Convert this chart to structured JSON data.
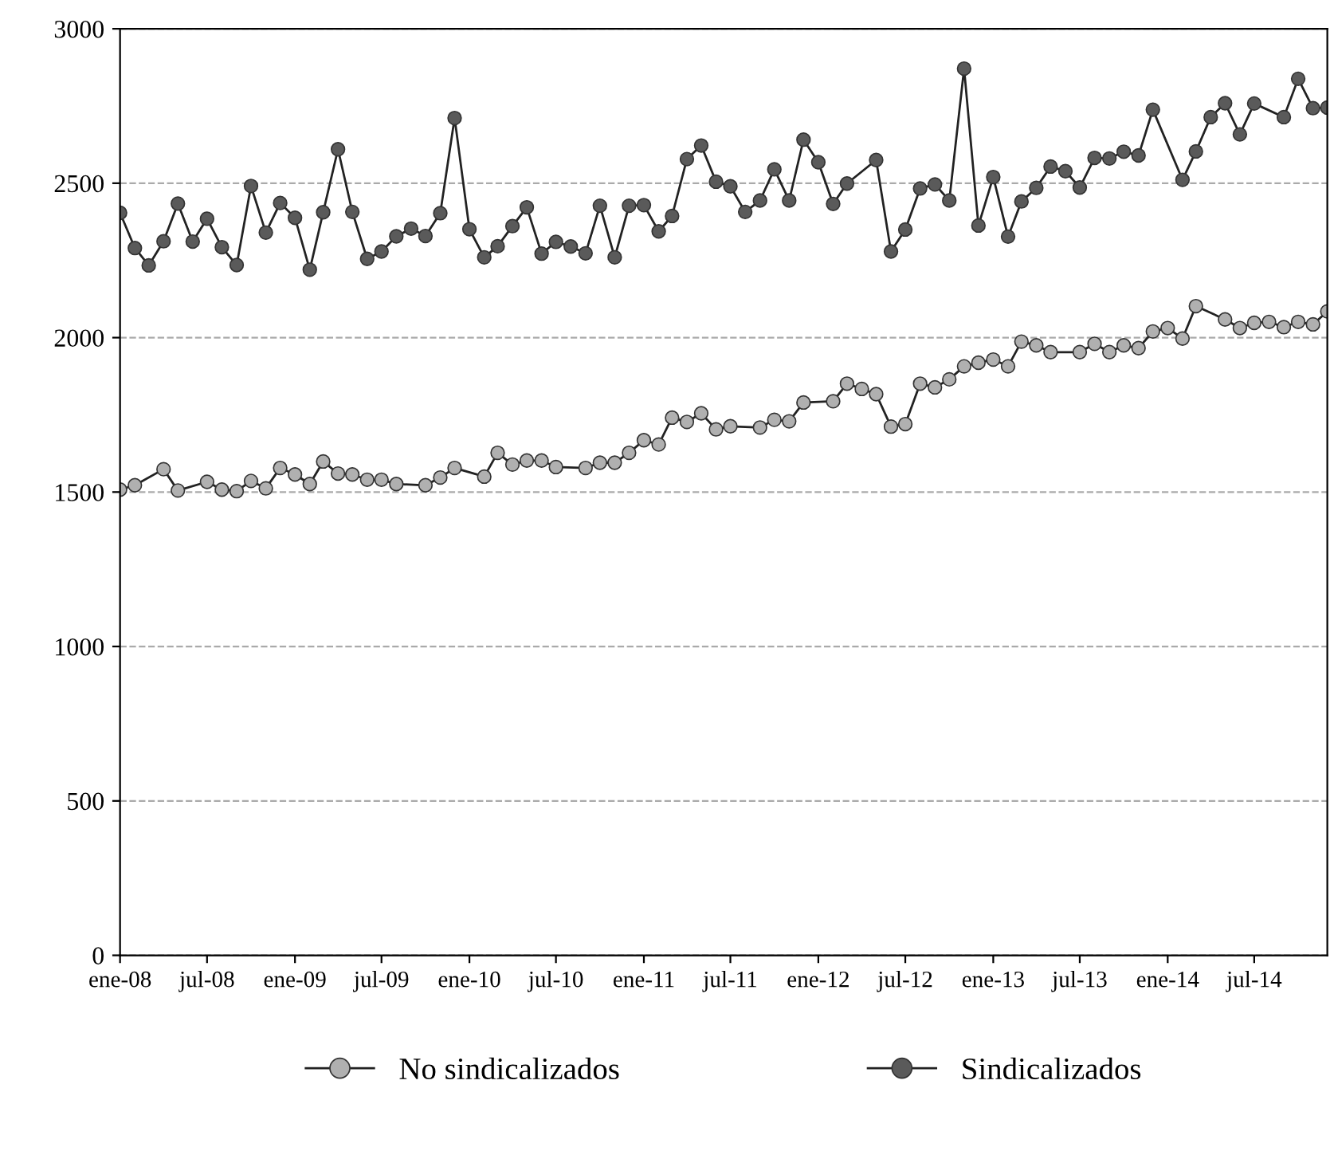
{
  "chart_data": {
    "type": "line",
    "xlim": [
      "2008-01",
      "2014-12"
    ],
    "xticks": [
      {
        "value": "2008-01",
        "label": "ene-08"
      },
      {
        "value": "2008-07",
        "label": "jul-08"
      },
      {
        "value": "2009-01",
        "label": "ene-09"
      },
      {
        "value": "2009-07",
        "label": "jul-09"
      },
      {
        "value": "2010-01",
        "label": "ene-10"
      },
      {
        "value": "2010-07",
        "label": "jul-10"
      },
      {
        "value": "2011-01",
        "label": "ene-11"
      },
      {
        "value": "2011-07",
        "label": "jul-11"
      },
      {
        "value": "2012-01",
        "label": "ene-12"
      },
      {
        "value": "2012-07",
        "label": "jul-12"
      },
      {
        "value": "2013-01",
        "label": "ene-13"
      },
      {
        "value": "2013-07",
        "label": "jul-13"
      },
      {
        "value": "2014-01",
        "label": "ene-14"
      },
      {
        "value": "2014-07",
        "label": "jul-14"
      }
    ],
    "ylim": [
      0,
      3000
    ],
    "yticks": [
      0,
      500,
      1000,
      1500,
      2000,
      2500,
      3000
    ],
    "grid": "y",
    "legend": "bottom",
    "marker": "circle",
    "line_style": "solid",
    "series": [
      {
        "name": "No sindicalizados",
        "color": "#b0b0b0",
        "x": [
          "2008-01",
          "2008-02",
          "2008-04",
          "2008-05",
          "2008-07",
          "2008-08",
          "2008-09",
          "2008-10",
          "2008-11",
          "2008-12",
          "2009-01",
          "2009-02",
          "2009-03",
          "2009-04",
          "2009-05",
          "2009-06",
          "2009-07",
          "2009-08",
          "2009-10",
          "2009-11",
          "2009-12",
          "2010-02",
          "2010-03",
          "2010-04",
          "2010-05",
          "2010-06",
          "2010-07",
          "2010-09",
          "2010-10",
          "2010-11",
          "2010-12",
          "2011-01",
          "2011-02",
          "2011-03",
          "2011-04",
          "2011-05",
          "2011-06",
          "2011-07",
          "2011-09",
          "2011-10",
          "2011-11",
          "2011-12",
          "2012-02",
          "2012-03",
          "2012-04",
          "2012-05",
          "2012-06",
          "2012-07",
          "2012-08",
          "2012-09",
          "2012-10",
          "2012-11",
          "2012-12",
          "2013-01",
          "2013-02",
          "2013-03",
          "2013-04",
          "2013-05",
          "2013-07",
          "2013-08",
          "2013-09",
          "2013-10",
          "2013-11",
          "2013-12",
          "2014-01",
          "2014-02",
          "2014-03",
          "2014-05",
          "2014-06",
          "2014-07",
          "2014-08",
          "2014-09",
          "2014-10",
          "2014-11",
          "2014-12"
        ],
        "values": [
          1508,
          1522,
          1574,
          1505,
          1533,
          1508,
          1503,
          1536,
          1512,
          1578,
          1557,
          1526,
          1599,
          1560,
          1557,
          1540,
          1540,
          1526,
          1522,
          1547,
          1578,
          1550,
          1627,
          1589,
          1602,
          1602,
          1581,
          1578,
          1595,
          1595,
          1627,
          1668,
          1654,
          1741,
          1727,
          1755,
          1703,
          1713,
          1709,
          1734,
          1729,
          1790,
          1794,
          1851,
          1834,
          1817,
          1712,
          1720,
          1851,
          1839,
          1865,
          1907,
          1919,
          1929,
          1907,
          1987,
          1975,
          1953,
          1953,
          1980,
          1953,
          1975,
          1966,
          2020,
          2031,
          1997,
          2102,
          2059,
          2031,
          2048,
          2051,
          2034,
          2051,
          2043,
          2085
        ]
      },
      {
        "name": "Sindicalizados",
        "color": "#5a5a5a",
        "x": [
          "2008-01",
          "2008-02",
          "2008-03",
          "2008-04",
          "2008-05",
          "2008-06",
          "2008-07",
          "2008-08",
          "2008-09",
          "2008-10",
          "2008-11",
          "2008-12",
          "2009-01",
          "2009-02",
          "2009-03",
          "2009-04",
          "2009-05",
          "2009-06",
          "2009-07",
          "2009-08",
          "2009-09",
          "2009-10",
          "2009-11",
          "2009-12",
          "2010-01",
          "2010-02",
          "2010-03",
          "2010-04",
          "2010-05",
          "2010-06",
          "2010-07",
          "2010-08",
          "2010-09",
          "2010-10",
          "2010-11",
          "2010-12",
          "2011-01",
          "2011-02",
          "2011-03",
          "2011-04",
          "2011-05",
          "2011-06",
          "2011-07",
          "2011-08",
          "2011-09",
          "2011-10",
          "2011-11",
          "2011-12",
          "2012-01",
          "2012-02",
          "2012-03",
          "2012-05",
          "2012-06",
          "2012-07",
          "2012-08",
          "2012-09",
          "2012-10",
          "2012-11",
          "2012-12",
          "2013-01",
          "2013-02",
          "2013-03",
          "2013-04",
          "2013-05",
          "2013-06",
          "2013-07",
          "2013-08",
          "2013-09",
          "2013-10",
          "2013-11",
          "2013-12",
          "2014-02",
          "2014-03",
          "2014-04",
          "2014-05",
          "2014-06",
          "2014-07",
          "2014-09",
          "2014-10",
          "2014-11",
          "2014-12"
        ],
        "values": [
          2404,
          2290,
          2234,
          2312,
          2434,
          2311,
          2385,
          2293,
          2235,
          2491,
          2340,
          2436,
          2388,
          2220,
          2406,
          2610,
          2407,
          2255,
          2279,
          2328,
          2353,
          2329,
          2403,
          2711,
          2351,
          2260,
          2296,
          2361,
          2422,
          2272,
          2310,
          2295,
          2273,
          2427,
          2260,
          2427,
          2429,
          2344,
          2394,
          2578,
          2622,
          2505,
          2490,
          2407,
          2444,
          2545,
          2444,
          2641,
          2568,
          2433,
          2499,
          2575,
          2279,
          2350,
          2483,
          2496,
          2444,
          2871,
          2363,
          2520,
          2327,
          2441,
          2485,
          2554,
          2539,
          2486,
          2582,
          2580,
          2602,
          2590,
          2738,
          2511,
          2603,
          2714,
          2759,
          2658,
          2758,
          2714,
          2838,
          2743,
          2745
        ]
      }
    ]
  }
}
